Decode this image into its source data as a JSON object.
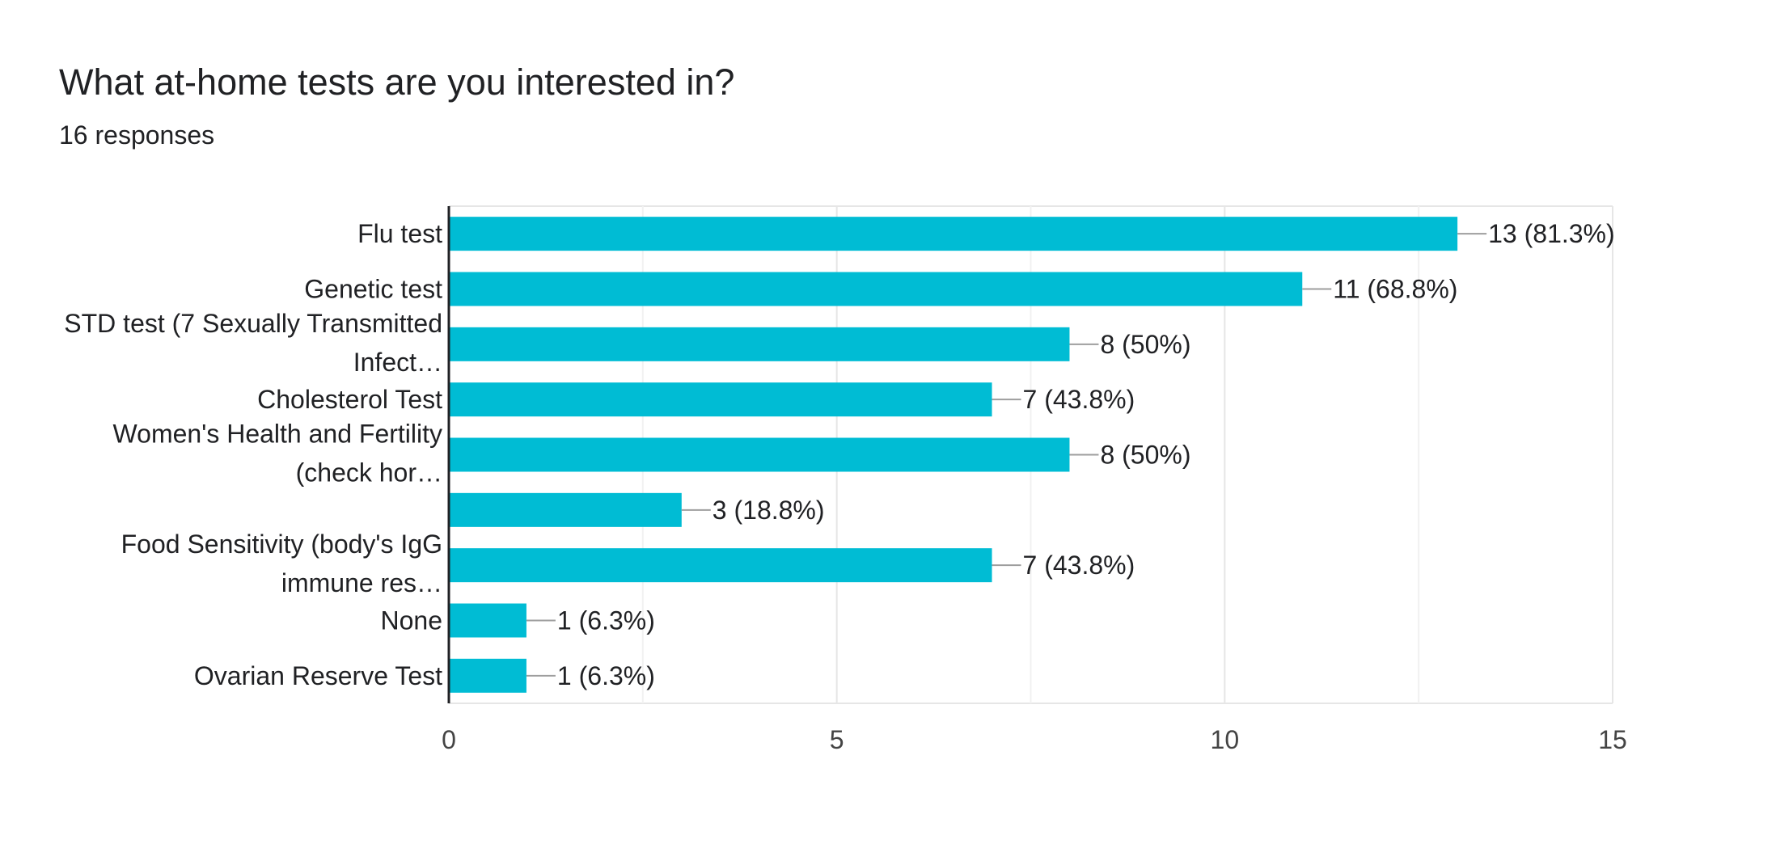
{
  "header": {
    "title": "What at-home tests are you interested in?",
    "responses": "16 responses"
  },
  "colors": {
    "bar": "#00bcd4",
    "grid": "#e6e6e6",
    "axis": "#202124",
    "leader": "#9e9e9e",
    "text": "#202124",
    "tick_text": "#444444"
  },
  "chart_data": {
    "type": "bar",
    "orientation": "horizontal",
    "title": "What at-home tests are you interested in?",
    "subtitle": "16 responses",
    "categories": [
      [
        "Flu test"
      ],
      [
        "Genetic test"
      ],
      [
        "STD test (7 Sexually Transmitted",
        "Infect…"
      ],
      [
        "Cholesterol Test"
      ],
      [
        "Women's Health and Fertility",
        "(check hor…"
      ],
      [],
      [
        "Food Sensitivity (body's IgG",
        "immune res…"
      ],
      [
        "None"
      ],
      [
        "Ovarian Reserve Test"
      ]
    ],
    "values": [
      13,
      11,
      8,
      7,
      8,
      3,
      7,
      1,
      1
    ],
    "data_labels": [
      "13 (81.3%)",
      "11 (68.8%)",
      "8 (50%)",
      "7 (43.8%)",
      "8 (50%)",
      "3 (18.8%)",
      "7 (43.8%)",
      "1 (6.3%)",
      "1 (6.3%)"
    ],
    "xlim": [
      0,
      15
    ],
    "x_ticks": [
      0,
      5,
      10,
      15
    ],
    "x_minor_gridlines": [
      2.5,
      7.5,
      12.5
    ],
    "xlabel": "",
    "ylabel": "",
    "grid": true,
    "legend": "none"
  }
}
